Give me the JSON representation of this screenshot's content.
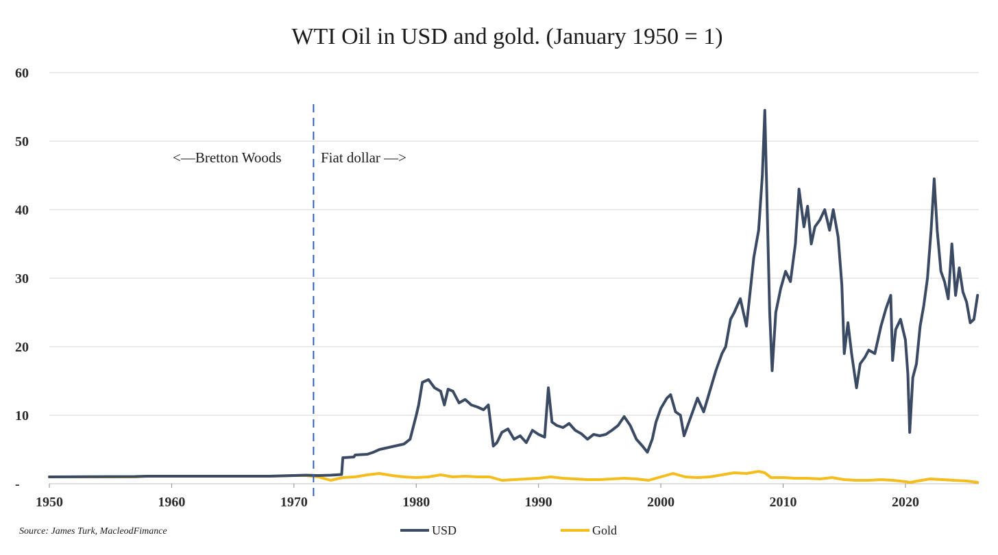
{
  "chart_data": {
    "type": "line",
    "title": "WTI Oil in USD and gold. (January 1950 = 1)",
    "xlabel": "",
    "ylabel": "",
    "xlim": [
      1950,
      2026
    ],
    "ylim": [
      0,
      60
    ],
    "y_ticks": [
      {
        "value": 0,
        "label": "-"
      },
      {
        "value": 10,
        "label": "10"
      },
      {
        "value": 20,
        "label": "20"
      },
      {
        "value": 30,
        "label": "30"
      },
      {
        "value": 40,
        "label": "40"
      },
      {
        "value": 50,
        "label": "50"
      },
      {
        "value": 60,
        "label": "60"
      }
    ],
    "x_ticks": [
      {
        "value": 1950,
        "label": "1950"
      },
      {
        "value": 1960,
        "label": "1960"
      },
      {
        "value": 1970,
        "label": "1970"
      },
      {
        "value": 1980,
        "label": "1980"
      },
      {
        "value": 1990,
        "label": "1990"
      },
      {
        "value": 2000,
        "label": "2000"
      },
      {
        "value": 2010,
        "label": "2010"
      },
      {
        "value": 2020,
        "label": "2020"
      }
    ],
    "grid": true,
    "legend_position": "bottom-center",
    "vline": {
      "x": 1971.6,
      "color": "#2e5db8",
      "style": "dashed"
    },
    "annotations": {
      "left": "<—Bretton Woods",
      "right": "Fiat dollar —>"
    },
    "source": "Source: James Turk, MacleodFimance",
    "series": [
      {
        "name": "USD",
        "color": "#3b4a63",
        "x": [
          1950,
          1957,
          1958,
          1968,
          1969,
          1970,
          1971,
          1972,
          1973.0,
          1973.9,
          1974.0,
          1974.9,
          1975.0,
          1976.0,
          1976.5,
          1977.0,
          1979.0,
          1979.5,
          1980.0,
          1980.2,
          1980.5,
          1981.0,
          1981.5,
          1982.0,
          1982.3,
          1982.6,
          1983.0,
          1983.5,
          1984.0,
          1984.5,
          1985.0,
          1985.5,
          1985.9,
          1986.3,
          1986.6,
          1987.0,
          1987.5,
          1988.0,
          1988.5,
          1989.0,
          1989.5,
          1990.0,
          1990.5,
          1990.8,
          1991.1,
          1991.5,
          1992.0,
          1992.5,
          1993.0,
          1993.5,
          1994.0,
          1994.5,
          1995.0,
          1995.5,
          1996.0,
          1996.5,
          1997.0,
          1997.5,
          1998.0,
          1998.5,
          1998.9,
          1999.3,
          1999.6,
          2000.0,
          2000.5,
          2000.8,
          2001.2,
          2001.6,
          2001.9,
          2002.3,
          2002.7,
          2003.0,
          2003.5,
          2004.0,
          2004.5,
          2005.0,
          2005.3,
          2005.7,
          2006.0,
          2006.5,
          2007.0,
          2007.3,
          2007.6,
          2008.0,
          2008.3,
          2008.5,
          2008.7,
          2008.9,
          2009.1,
          2009.4,
          2009.8,
          2010.2,
          2010.6,
          2011.0,
          2011.3,
          2011.7,
          2012.0,
          2012.3,
          2012.6,
          2013.0,
          2013.4,
          2013.8,
          2014.1,
          2014.5,
          2014.8,
          2015.0,
          2015.3,
          2015.6,
          2016.0,
          2016.3,
          2016.7,
          2017.0,
          2017.5,
          2018.0,
          2018.4,
          2018.8,
          2018.95,
          2019.2,
          2019.6,
          2020.0,
          2020.2,
          2020.35,
          2020.6,
          2020.9,
          2021.2,
          2021.5,
          2021.8,
          2022.1,
          2022.35,
          2022.6,
          2022.9,
          2023.2,
          2023.5,
          2023.8,
          2024.1,
          2024.4,
          2024.7,
          2025.0,
          2025.3,
          2025.6,
          2025.9
        ],
        "values": [
          1.0,
          1.05,
          1.1,
          1.1,
          1.15,
          1.2,
          1.25,
          1.2,
          1.25,
          1.35,
          3.8,
          3.9,
          4.2,
          4.3,
          4.6,
          5.0,
          5.8,
          6.5,
          10.0,
          11.5,
          14.8,
          15.2,
          14.0,
          13.5,
          11.5,
          13.8,
          13.5,
          11.8,
          12.3,
          11.5,
          11.2,
          10.8,
          11.5,
          5.5,
          6.0,
          7.5,
          8.0,
          6.5,
          7.0,
          6.0,
          7.8,
          7.2,
          6.8,
          14.0,
          9.0,
          8.5,
          8.2,
          8.8,
          7.8,
          7.3,
          6.5,
          7.2,
          7.0,
          7.2,
          7.8,
          8.5,
          9.8,
          8.5,
          6.5,
          5.5,
          4.6,
          6.5,
          9.0,
          11.0,
          12.5,
          13.0,
          10.5,
          10.0,
          7.0,
          9.0,
          11.0,
          12.5,
          10.5,
          13.5,
          16.5,
          19.0,
          20.0,
          24.0,
          25.0,
          27.0,
          23.0,
          28.0,
          33.0,
          37.0,
          45.0,
          54.5,
          40.0,
          25.0,
          16.5,
          25.0,
          28.5,
          31.0,
          29.5,
          35.0,
          43.0,
          37.5,
          40.5,
          35.0,
          37.5,
          38.5,
          40.0,
          37.0,
          40.0,
          36.0,
          29.0,
          19.0,
          23.5,
          19.0,
          14.0,
          17.5,
          18.5,
          19.5,
          19.0,
          23.0,
          25.5,
          27.5,
          18.0,
          22.5,
          24.0,
          21.0,
          16.0,
          7.5,
          15.5,
          17.5,
          23.0,
          26.0,
          30.0,
          37.0,
          44.5,
          37.0,
          31.0,
          29.5,
          27.0,
          35.0,
          27.5,
          31.5,
          28.0,
          26.5,
          23.5,
          24.0,
          27.5
        ]
      },
      {
        "name": "Gold",
        "color": "#f4bc1c",
        "x": [
          1950,
          1957,
          1958,
          1968,
          1969,
          1970,
          1971,
          1972,
          1973,
          1974,
          1975,
          1976,
          1977,
          1978,
          1979,
          1980,
          1981,
          1982,
          1983,
          1984,
          1985,
          1986,
          1987,
          1988,
          1989,
          1990,
          1991,
          1992,
          1993,
          1994,
          1995,
          1996,
          1997,
          1998,
          1999,
          2000,
          2001,
          2002,
          2003,
          2004,
          2005,
          2006,
          2007,
          2008,
          2008.5,
          2009,
          2010,
          2011,
          2012,
          2013,
          2014,
          2015,
          2016,
          2017,
          2018,
          2019,
          2020,
          2020.4,
          2021,
          2022,
          2023,
          2024,
          2025,
          2025.9
        ],
        "values": [
          1.0,
          1.0,
          1.1,
          1.1,
          1.15,
          1.2,
          1.2,
          1.0,
          0.5,
          0.9,
          1.0,
          1.3,
          1.5,
          1.2,
          1.0,
          0.9,
          1.0,
          1.3,
          1.0,
          1.1,
          1.0,
          1.0,
          0.5,
          0.6,
          0.7,
          0.8,
          1.0,
          0.8,
          0.7,
          0.6,
          0.6,
          0.7,
          0.8,
          0.7,
          0.5,
          1.0,
          1.5,
          1.0,
          0.9,
          1.0,
          1.3,
          1.6,
          1.5,
          1.8,
          1.6,
          0.9,
          0.9,
          0.8,
          0.8,
          0.7,
          0.9,
          0.6,
          0.5,
          0.5,
          0.6,
          0.5,
          0.3,
          0.2,
          0.4,
          0.7,
          0.6,
          0.5,
          0.4,
          0.2
        ]
      }
    ]
  }
}
